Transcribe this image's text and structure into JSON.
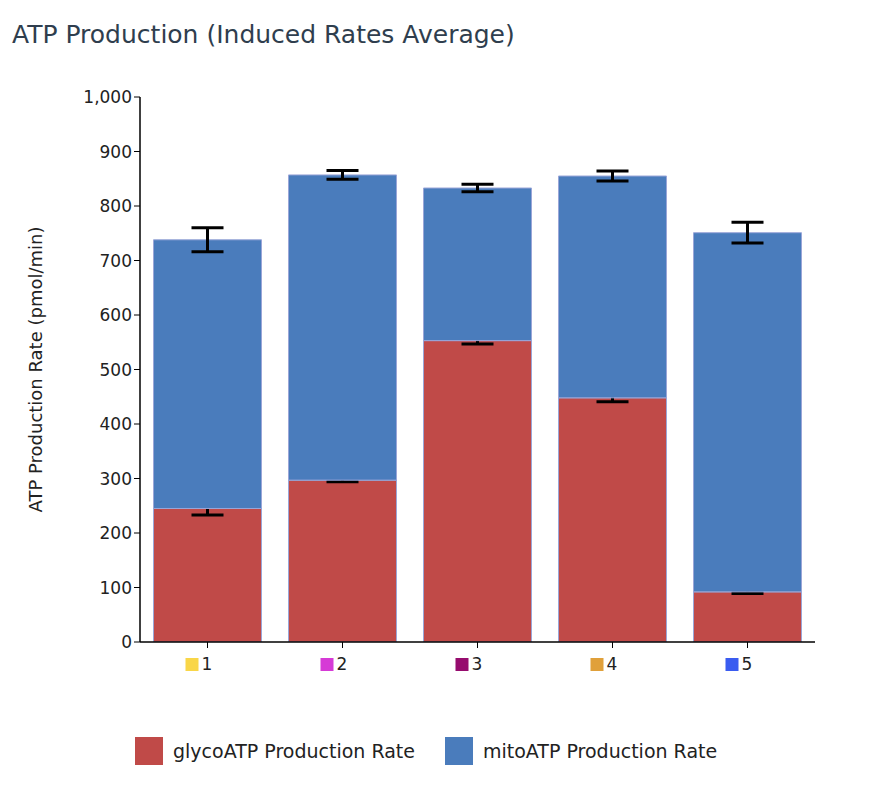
{
  "chart_data": {
    "type": "bar",
    "title": "ATP Production (Induced Rates Average)",
    "y_label": "ATP Production Rate (pmol/min)",
    "categories": [
      "1",
      "2",
      "3",
      "4",
      "5"
    ],
    "series": [
      {
        "name": "glycoATP Production Rate",
        "color": "#c04a48",
        "values": [
          245,
          297,
          553,
          448,
          92
        ],
        "errors": [
          12,
          3,
          6,
          7,
          3
        ]
      },
      {
        "name": "mitoATP Production Rate",
        "color": "#4a7cbc",
        "values": [
          493,
          560,
          280,
          407,
          659
        ],
        "errors": [
          22,
          8,
          7,
          9,
          19
        ]
      }
    ],
    "stacked": true,
    "ylim": [
      0,
      1000
    ],
    "yticks": [
      0,
      100,
      200,
      300,
      400,
      500,
      600,
      700,
      800,
      900,
      {
        "value": 1000,
        "label": "1,000"
      }
    ],
    "grid": false,
    "legend": "bottom"
  }
}
